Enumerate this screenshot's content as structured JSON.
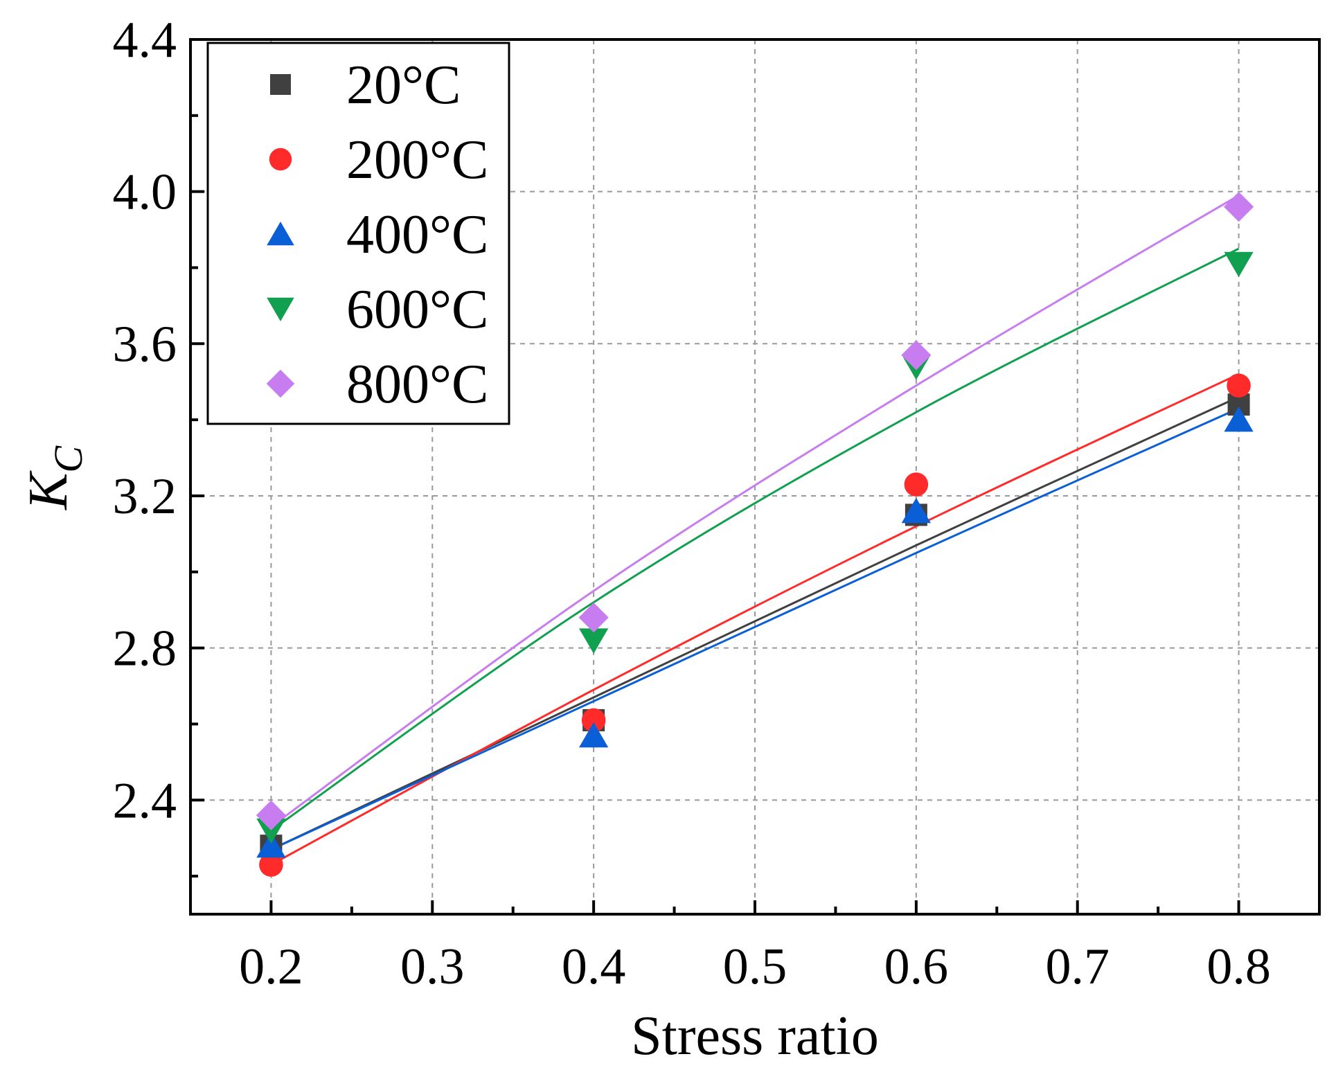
{
  "chart_data": {
    "type": "scatter",
    "title": "",
    "xlabel": "Stress ratio",
    "ylabel_main": "K",
    "ylabel_sub": "C",
    "xlim": [
      0.15,
      0.85
    ],
    "ylim": [
      2.1,
      4.4
    ],
    "x_ticks": [
      0.2,
      0.3,
      0.4,
      0.5,
      0.6,
      0.7,
      0.8
    ],
    "x_tick_labels": [
      "0.2",
      "0.3",
      "0.4",
      "0.5",
      "0.6",
      "0.7",
      "0.8"
    ],
    "y_ticks": [
      2.4,
      2.8,
      3.2,
      3.6,
      4.0,
      4.4
    ],
    "y_tick_labels": [
      "2.4",
      "2.8",
      "3.2",
      "3.6",
      "4.0",
      "4.4"
    ],
    "grid": true,
    "legend_position": "top-left",
    "fit_lines": true,
    "x": [
      0.2,
      0.4,
      0.6,
      0.8
    ],
    "series": [
      {
        "name": "20°C",
        "color": "#404040",
        "marker": "square",
        "values": [
          2.28,
          2.61,
          3.15,
          3.44
        ],
        "fit": [
          2.27,
          2.67,
          3.07,
          3.46
        ]
      },
      {
        "name": "200°C",
        "color": "#ff2a2a",
        "marker": "circle",
        "values": [
          2.23,
          2.61,
          3.23,
          3.49
        ],
        "fit": [
          2.23,
          2.69,
          3.12,
          3.52
        ]
      },
      {
        "name": "400°C",
        "color": "#0a5fd6",
        "marker": "triangle-up",
        "values": [
          2.28,
          2.57,
          3.16,
          3.4
        ],
        "fit": [
          2.27,
          2.66,
          3.05,
          3.43
        ]
      },
      {
        "name": "600°C",
        "color": "#10a050",
        "marker": "triangle-down",
        "values": [
          2.32,
          2.82,
          3.54,
          3.81
        ],
        "fit": [
          2.32,
          2.92,
          3.42,
          3.85
        ]
      },
      {
        "name": "800°C",
        "color": "#c77df0",
        "marker": "diamond",
        "values": [
          2.36,
          2.88,
          3.57,
          3.96
        ],
        "fit": [
          2.33,
          2.95,
          3.49,
          3.99
        ]
      }
    ]
  }
}
